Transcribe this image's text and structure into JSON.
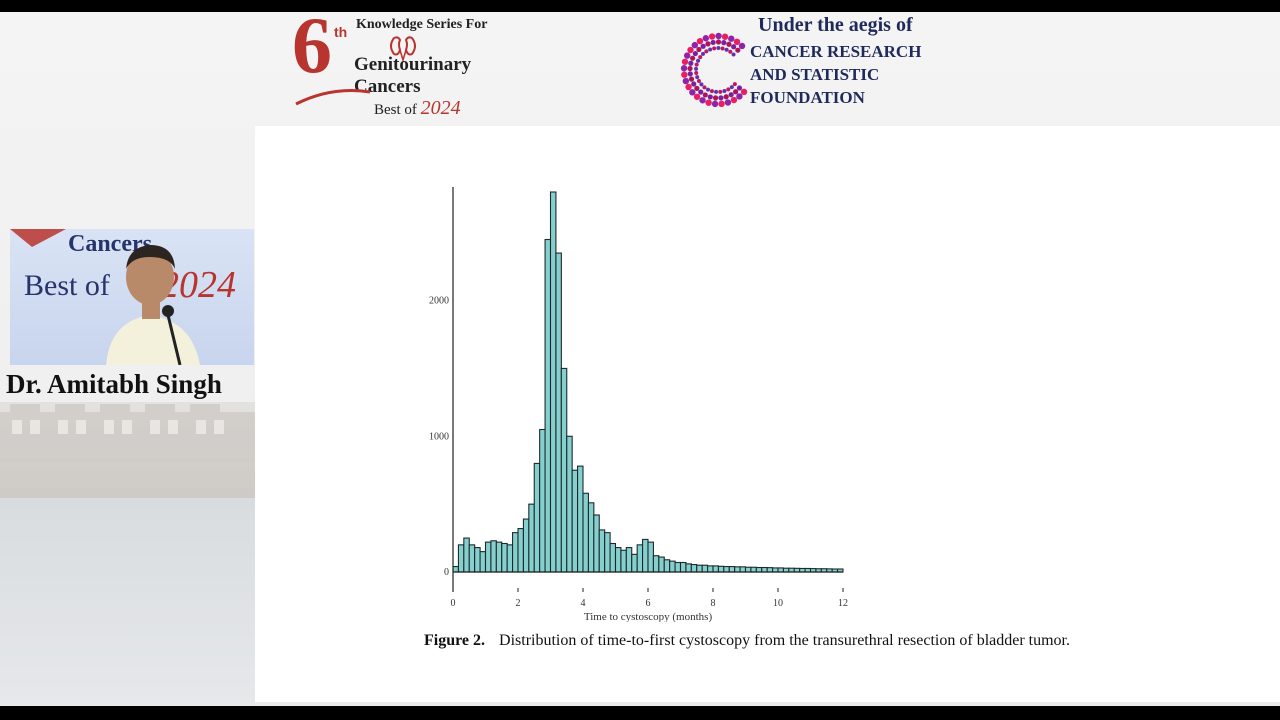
{
  "header": {
    "logo_number": "6",
    "logo_sup": "th",
    "logo_line1": "Knowledge Series For",
    "logo_line2": "Genitourinary",
    "logo_line3": "Cancers",
    "logo_best": "Best of",
    "logo_year": "2024",
    "aegis_title": "Under the aegis of",
    "aegis_line1": "CANCER RESEARCH",
    "aegis_line2": "AND STATISTIC",
    "aegis_line3": "FOUNDATION"
  },
  "speaker": {
    "name": "Dr. Amitabh Singh",
    "backdrop_cancers": "Cancers",
    "backdrop_best": "Best of",
    "backdrop_year": "2024"
  },
  "colors": {
    "brand_red": "#b8342e",
    "navy": "#1f2a5a",
    "bar_fill": "#86cfcf",
    "bar_stroke": "#1d2a2a"
  },
  "caption": {
    "label": "Figure 2.",
    "text": "Distribution of time-to-first cystoscopy from the transurethral resection of bladder tumor."
  },
  "chart_data": {
    "type": "bar",
    "title": "",
    "xlabel": "Time to cystoscopy (months)",
    "ylabel": "",
    "xlim": [
      0,
      12
    ],
    "ylim": [
      0,
      2800
    ],
    "xticks": [
      0,
      2,
      4,
      6,
      8,
      10,
      12
    ],
    "yticks": [
      0,
      1000,
      2000
    ],
    "bin_width": 0.167,
    "bin_starts": [
      0.0,
      0.167,
      0.333,
      0.5,
      0.667,
      0.833,
      1.0,
      1.167,
      1.333,
      1.5,
      1.667,
      1.833,
      2.0,
      2.167,
      2.333,
      2.5,
      2.667,
      2.833,
      3.0,
      3.167,
      3.333,
      3.5,
      3.667,
      3.833,
      4.0,
      4.167,
      4.333,
      4.5,
      4.667,
      4.833,
      5.0,
      5.167,
      5.333,
      5.5,
      5.667,
      5.833,
      6.0,
      6.167,
      6.333,
      6.5,
      6.667,
      6.833,
      7.0,
      7.167,
      7.333,
      7.5,
      7.667,
      7.833,
      8.0,
      8.167,
      8.333,
      8.5,
      8.667,
      8.833,
      9.0,
      9.167,
      9.333,
      9.5,
      9.667,
      9.833,
      10.0,
      10.167,
      10.333,
      10.5,
      10.667,
      10.833,
      11.0,
      11.167,
      11.333,
      11.5,
      11.667,
      11.833
    ],
    "values": [
      40,
      200,
      250,
      200,
      180,
      150,
      220,
      230,
      220,
      210,
      200,
      290,
      320,
      390,
      500,
      800,
      1050,
      2450,
      2800,
      2350,
      1500,
      1000,
      750,
      780,
      580,
      510,
      420,
      310,
      290,
      210,
      180,
      160,
      180,
      130,
      200,
      240,
      220,
      120,
      110,
      90,
      80,
      70,
      70,
      60,
      55,
      50,
      50,
      45,
      45,
      42,
      40,
      40,
      38,
      38,
      35,
      35,
      33,
      33,
      32,
      30,
      30,
      28,
      28,
      27,
      26,
      26,
      25,
      24,
      24,
      23,
      22,
      22
    ]
  }
}
